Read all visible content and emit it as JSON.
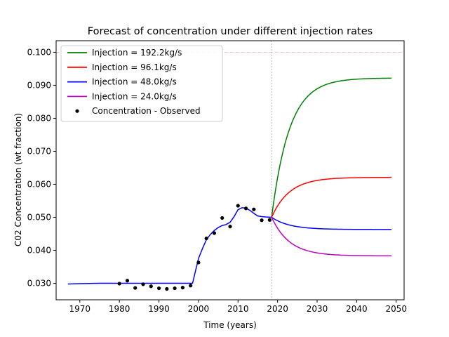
{
  "chart_data": {
    "type": "line",
    "title": "Forecast of concentration under different injection rates",
    "xlabel": "Time (years)",
    "ylabel": "C02 Concentration (wt fraction)",
    "xlim": [
      1964,
      2052
    ],
    "ylim": [
      0.025,
      0.1035
    ],
    "xticks": [
      1970,
      1980,
      1990,
      2000,
      2010,
      2020,
      2030,
      2040,
      2050
    ],
    "yticks": [
      0.03,
      0.04,
      0.05,
      0.06,
      0.07,
      0.08,
      0.09,
      0.1
    ],
    "ytick_labels": [
      "0.030",
      "0.040",
      "0.050",
      "0.060",
      "0.070",
      "0.080",
      "0.090",
      "0.100"
    ],
    "reference_lines": {
      "horizontal": 0.1,
      "horizontal_color": "#ffb6c1",
      "vertical": 2018.5,
      "vertical_color": "#aaaaaa"
    },
    "legend_position": "top-left",
    "history": {
      "color": "#0000ff",
      "x": [
        1967,
        1970,
        1975,
        1980,
        1985,
        1990,
        1995,
        1998.5,
        2000,
        2001,
        2002,
        2003,
        2004,
        2005,
        2006,
        2007,
        2008,
        2009,
        2010,
        2011,
        2012,
        2013,
        2014,
        2015,
        2016,
        2017,
        2018.5
      ],
      "y": [
        0.0298,
        0.0299,
        0.03,
        0.03,
        0.03,
        0.03,
        0.03,
        0.03,
        0.0375,
        0.0405,
        0.0432,
        0.0448,
        0.046,
        0.0469,
        0.0475,
        0.0478,
        0.0485,
        0.0502,
        0.0523,
        0.0529,
        0.0528,
        0.0521,
        0.0512,
        0.0504,
        0.0502,
        0.0501,
        0.05
      ]
    },
    "forecast": {
      "x_start": 2018.5,
      "x_end": 2048.8,
      "y_start": 0.05,
      "tau": 4.5
    },
    "series": [
      {
        "name": "Injection = 192.2kg/s",
        "color": "#008000",
        "final": 0.0922
      },
      {
        "name": "Injection = 96.1kg/s",
        "color": "#ff0000",
        "final": 0.0621
      },
      {
        "name": "Injection = 48.0kg/s",
        "color": "#0000ff",
        "final": 0.0463
      },
      {
        "name": "Injection = 24.0kg/s",
        "color": "#bf00bf",
        "final": 0.0383
      }
    ],
    "observed": {
      "name": "Concentration - Observed",
      "color": "#000000",
      "x": [
        1980,
        1982,
        1984,
        1986,
        1988,
        1990,
        1992,
        1994,
        1996,
        1998,
        2000,
        2002,
        2004,
        2006,
        2008,
        2010,
        2012,
        2014,
        2016,
        2018
      ],
      "y": [
        0.0299,
        0.0308,
        0.0286,
        0.0297,
        0.0291,
        0.0285,
        0.0283,
        0.0285,
        0.0287,
        0.0293,
        0.0363,
        0.0436,
        0.0452,
        0.0498,
        0.0472,
        0.0535,
        0.0527,
        0.0524,
        0.0491,
        0.0492
      ]
    }
  }
}
